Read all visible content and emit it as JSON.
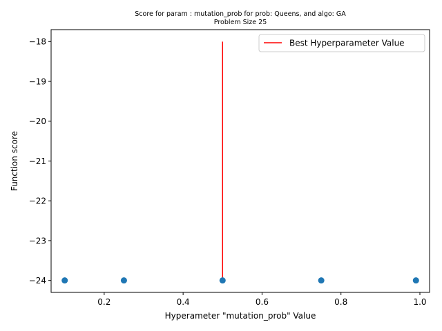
{
  "chart_data": {
    "type": "scatter",
    "title_line1": "Score for param : mutation_prob for prob: Queens, and algo: GA",
    "title_line2": "Problem Size 25",
    "xlabel": "Hyperameter \"mutation_prob\" Value",
    "ylabel": "Function score",
    "xlim": [
      0.0655,
      1.0245
    ],
    "ylim": [
      -24.3,
      -17.7
    ],
    "xticks": [
      0.2,
      0.4,
      0.6,
      0.8,
      1.0
    ],
    "xtick_labels": [
      "0.2",
      "0.4",
      "0.6",
      "0.8",
      "1.0"
    ],
    "yticks": [
      -24,
      -23,
      -22,
      -21,
      -20,
      -19,
      -18
    ],
    "ytick_labels": [
      "−24",
      "−23",
      "−22",
      "−21",
      "−20",
      "−19",
      "−18"
    ],
    "series": [
      {
        "x": [
          0.1,
          0.25,
          0.5,
          0.75,
          0.99
        ],
        "y": [
          -24,
          -24,
          -24,
          -24,
          -24
        ],
        "color": "#1f77b4"
      }
    ],
    "best_line": {
      "name": "Best Hyperparameter Value",
      "x": 0.5,
      "y_from": -24,
      "y_to": -18,
      "color": "#ff0000"
    },
    "legend_position": "top-right",
    "grid": false
  }
}
